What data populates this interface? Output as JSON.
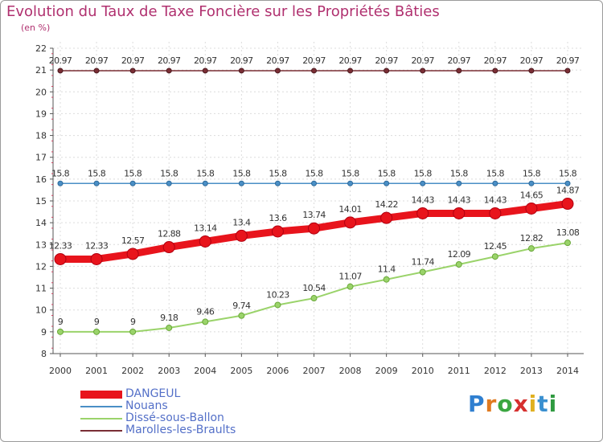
{
  "chart_data": {
    "type": "line",
    "title": "Evolution du Taux de Taxe Foncière sur les Propriétés Bâties",
    "unit_label": "(en %)",
    "categories": [
      "2000",
      "2001",
      "2002",
      "2003",
      "2004",
      "2005",
      "2006",
      "2007",
      "2008",
      "2009",
      "2010",
      "2011",
      "2012",
      "2013",
      "2014"
    ],
    "ylim": [
      8,
      22
    ],
    "yticks": [
      "8",
      "9",
      "10",
      "11",
      "12",
      "13",
      "14",
      "15",
      "16",
      "17",
      "18",
      "19",
      "20",
      "21",
      "22"
    ],
    "grid": true,
    "series": [
      {
        "name": "DANGEUL",
        "color": "#e8141c",
        "values": [
          12.33,
          12.33,
          12.57,
          12.88,
          13.14,
          13.4,
          13.6,
          13.74,
          14.01,
          14.22,
          14.43,
          14.43,
          14.43,
          14.65,
          14.87
        ],
        "labels": [
          "12.33",
          "12.33",
          "12.57",
          "12.88",
          "13.14",
          "13.4",
          "13.6",
          "13.74",
          "14.01",
          "14.22",
          "14.43",
          "14.43",
          "14.43",
          "14.65",
          "14.87"
        ]
      },
      {
        "name": "Nouans",
        "color": "#4a8fc6",
        "values": [
          15.8,
          15.8,
          15.8,
          15.8,
          15.8,
          15.8,
          15.8,
          15.8,
          15.8,
          15.8,
          15.8,
          15.8,
          15.8,
          15.8,
          15.8
        ],
        "labels": [
          "15.8",
          "15.8",
          "15.8",
          "15.8",
          "15.8",
          "15.8",
          "15.8",
          "15.8",
          "15.8",
          "15.8",
          "15.8",
          "15.8",
          "15.8",
          "15.8",
          "15.8"
        ]
      },
      {
        "name": "Dissé-sous-Ballon",
        "color": "#9ad36a",
        "values": [
          9,
          9,
          9,
          9.18,
          9.46,
          9.74,
          10.23,
          10.54,
          11.07,
          11.4,
          11.74,
          12.09,
          12.45,
          12.82,
          13.08
        ],
        "labels": [
          "9",
          "9",
          "9",
          "9.18",
          "9.46",
          "9.74",
          "10.23",
          "10.54",
          "11.07",
          "11.4",
          "11.74",
          "12.09",
          "12.45",
          "12.82",
          "13.08"
        ]
      },
      {
        "name": "Marolles-les-Braults",
        "color": "#7a2e35",
        "values": [
          20.97,
          20.97,
          20.97,
          20.97,
          20.97,
          20.97,
          20.97,
          20.97,
          20.97,
          20.97,
          20.97,
          20.97,
          20.97,
          20.97,
          20.97
        ],
        "labels": [
          "20.97",
          "20.97",
          "20.97",
          "20.97",
          "20.97",
          "20.97",
          "20.97",
          "20.97",
          "20.97",
          "20.97",
          "20.97",
          "20.97",
          "20.97",
          "20.97",
          "20.97"
        ]
      }
    ],
    "legend": [
      "DANGEUL",
      "Nouans",
      "Dissé-sous-Ballon",
      "Marolles-les-Braults"
    ]
  },
  "brand": {
    "letters": [
      "P",
      "r",
      "o",
      "x",
      "i",
      "t",
      "i"
    ],
    "colors": [
      "#2f7fd0",
      "#e07a20",
      "#3aa640",
      "#d6302f",
      "#e0b020",
      "#3a90d0",
      "#2f9a40"
    ]
  }
}
